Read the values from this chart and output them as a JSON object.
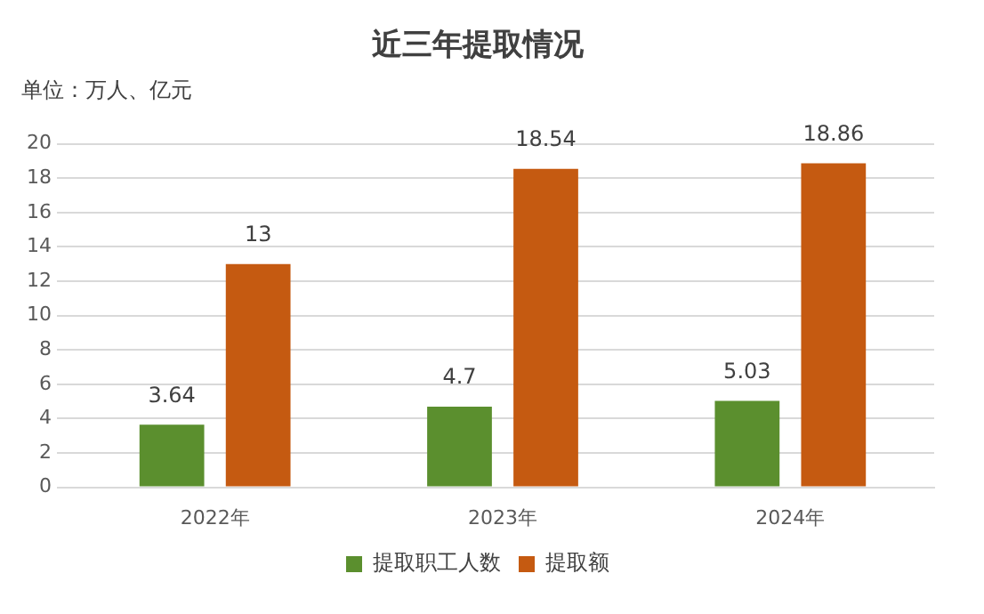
{
  "chart_data": {
    "type": "bar",
    "title": "近三年提取情况",
    "subtitle": "单位：万人、亿元",
    "categories": [
      "2022年",
      "2023年",
      "2024年"
    ],
    "series": [
      {
        "name": "提取职工人数",
        "color": "#5b8f2e",
        "values": [
          3.64,
          4.7,
          5.03
        ]
      },
      {
        "name": "提取额",
        "color": "#c55a11",
        "values": [
          13,
          18.54,
          18.86
        ]
      }
    ],
    "ylim": [
      0,
      20
    ],
    "yticks": [
      0,
      2,
      4,
      6,
      8,
      10,
      12,
      14,
      16,
      18,
      20
    ],
    "grid": "y",
    "legend": "bottom",
    "data_labels": true
  }
}
